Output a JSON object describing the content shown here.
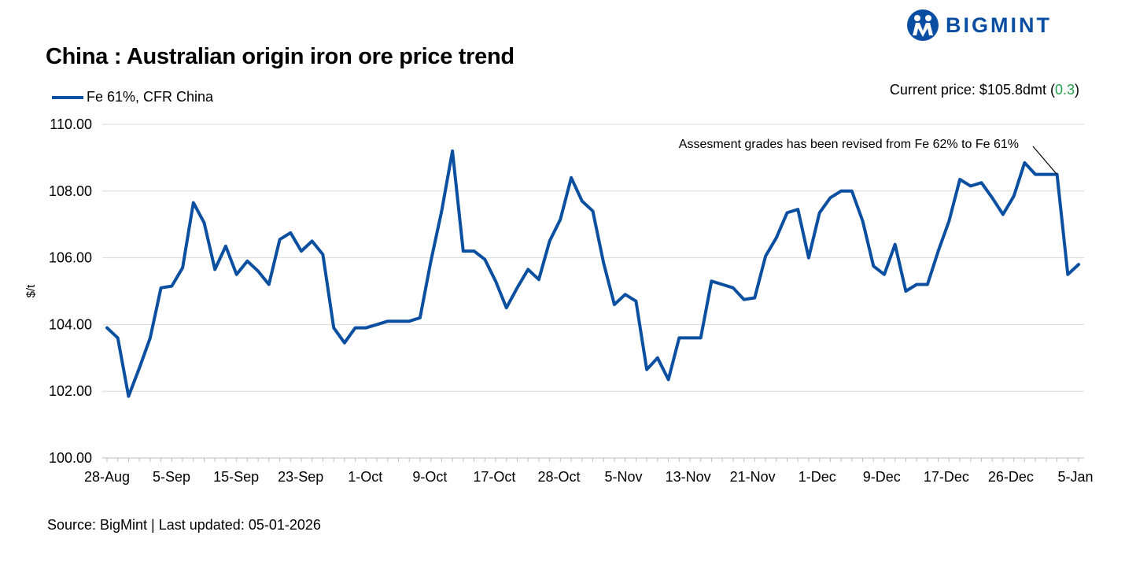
{
  "brand": {
    "name": "BIGMINT",
    "color": "#0a4ea3"
  },
  "title": "China : Australian origin iron ore price trend",
  "current_price": {
    "prefix": "Current price: ",
    "value": "$105.8dmt",
    "open": " (",
    "change": "0.3",
    "close": ")",
    "change_color": "#21a04a"
  },
  "source": "Source: BigMint | Last updated: 05-01-2026",
  "chart_data": {
    "type": "line",
    "ylabel": "$/t",
    "xlabel": "",
    "ylim": [
      100,
      110
    ],
    "yticks": [
      "100.00",
      "102.00",
      "104.00",
      "106.00",
      "108.00",
      "110.00"
    ],
    "grid": true,
    "legend_placement": "top-left",
    "x_tick_labels": [
      "28-Aug",
      "5-Sep",
      "15-Sep",
      "23-Sep",
      "1-Oct",
      "9-Oct",
      "17-Oct",
      "28-Oct",
      "5-Nov",
      "13-Nov",
      "21-Nov",
      "1-Dec",
      "9-Dec",
      "17-Dec",
      "26-Dec",
      "5-Jan"
    ],
    "annotation": "Assesment grades has been revised from Fe 62% to Fe 61%",
    "series": [
      {
        "name": "Fe 61%, CFR China",
        "color": "#0b4fa0",
        "values": [
          103.9,
          103.6,
          101.85,
          102.7,
          103.6,
          105.1,
          105.15,
          105.7,
          107.65,
          107.05,
          105.65,
          106.35,
          105.5,
          105.9,
          105.6,
          105.2,
          106.55,
          106.75,
          106.2,
          106.5,
          106.1,
          103.9,
          103.45,
          103.9,
          103.9,
          104.0,
          104.1,
          104.1,
          104.1,
          104.2,
          105.9,
          107.4,
          109.2,
          106.2,
          106.2,
          105.95,
          105.3,
          104.5,
          105.1,
          105.65,
          105.35,
          106.5,
          107.15,
          108.4,
          107.7,
          107.4,
          105.85,
          104.6,
          104.9,
          104.7,
          102.65,
          103.0,
          102.35,
          103.6,
          103.6,
          103.6,
          105.3,
          105.2,
          105.1,
          104.75,
          104.8,
          106.05,
          106.6,
          107.35,
          107.45,
          106.0,
          107.35,
          107.8,
          108.0,
          108.0,
          107.1,
          105.75,
          105.5,
          106.4,
          105.0,
          105.2,
          105.2,
          106.2,
          107.1,
          108.35,
          108.15,
          108.25,
          107.8,
          107.3,
          107.85,
          108.85,
          108.5,
          108.5,
          108.5,
          105.5,
          105.8
        ]
      }
    ]
  }
}
